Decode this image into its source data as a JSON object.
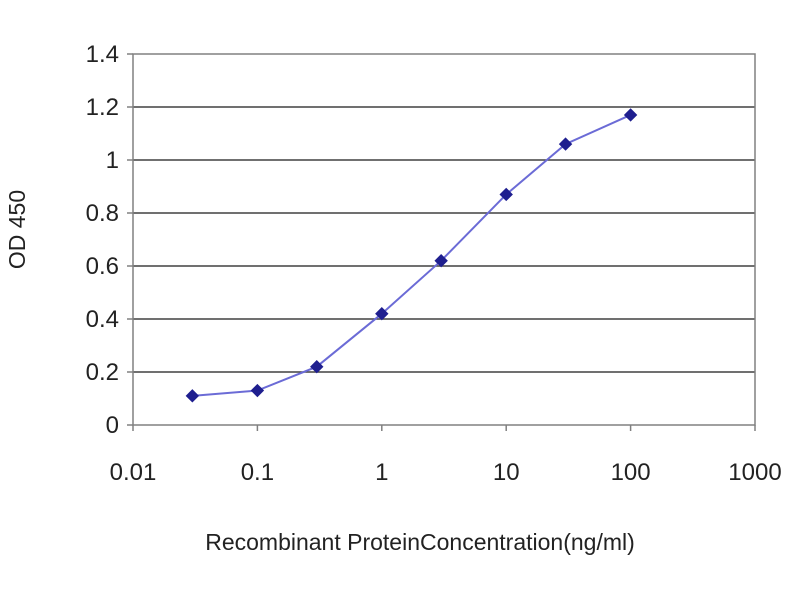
{
  "chart_data": {
    "type": "line",
    "title": "",
    "xlabel": "Recombinant ProteinConcentration(ng/ml)",
    "ylabel": "OD 450",
    "x_scale": "log",
    "xlim": [
      0.01,
      1000
    ],
    "ylim": [
      0,
      1.4
    ],
    "x_ticks": [
      "0.01",
      "0.1",
      "1",
      "10",
      "100",
      "1000"
    ],
    "y_ticks": [
      "0",
      "0.2",
      "0.4",
      "0.6",
      "0.8",
      "1",
      "1.2",
      "1.4"
    ],
    "grid": "horizontal",
    "legend": "none",
    "series": [
      {
        "x": [
          0.03,
          0.1,
          0.3,
          1,
          3,
          10,
          30,
          100
        ],
        "y": [
          0.11,
          0.13,
          0.22,
          0.42,
          0.62,
          0.87,
          1.06,
          1.17
        ],
        "color": "#1f1f8f",
        "line_color": "#6b6bd6"
      }
    ],
    "colors": {
      "plot_border": "#808080",
      "gridline": "#404040",
      "marker": "#1f1f8f",
      "line": "#6b6bd6"
    }
  }
}
